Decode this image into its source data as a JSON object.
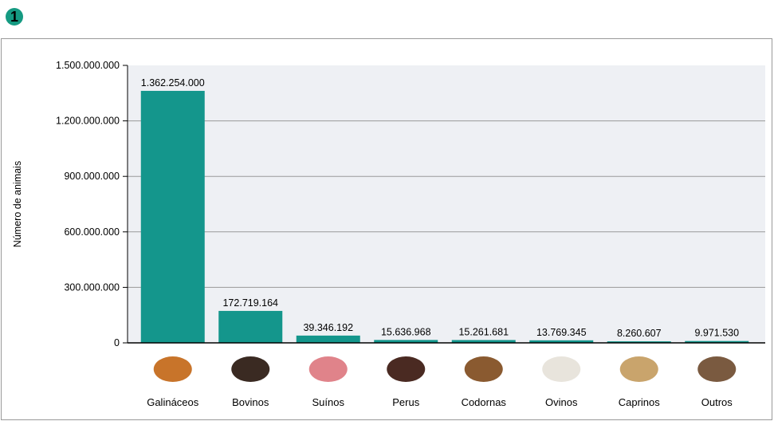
{
  "badge": "1",
  "colors": {
    "bar": "#14968c",
    "plot_bg": "#eef0f4",
    "grid": "#999999"
  },
  "chart_data": {
    "type": "bar",
    "title": "",
    "xlabel": "",
    "ylabel": "Número de animais",
    "ylim": [
      0,
      1500000000
    ],
    "yticks": [
      0,
      300000000,
      600000000,
      900000000,
      1200000000,
      1500000000
    ],
    "ytick_labels": [
      "0",
      "300.000.000",
      "600.000.000",
      "900.000.000",
      "1.200.000.000",
      "1.500.000.000"
    ],
    "grid": true,
    "categories": [
      "Galináceos",
      "Bovinos",
      "Suínos",
      "Perus",
      "Codornas",
      "Ovinos",
      "Caprinos",
      "Outros"
    ],
    "values": [
      1362254000,
      172719164,
      39346192,
      15636968,
      15261681,
      13769345,
      8260607,
      9971530
    ],
    "data_labels": [
      "1.362.254.000",
      "172.719.164",
      "39.346.192",
      "15.636.968",
      "15.261.681",
      "13.769.345",
      "8.260.607",
      "9.971.530"
    ],
    "icons": [
      "chicken-icon",
      "cow-icon",
      "pig-icon",
      "turkey-icon",
      "quail-icon",
      "sheep-icon",
      "goat-icon",
      "other-animals-icon"
    ]
  }
}
